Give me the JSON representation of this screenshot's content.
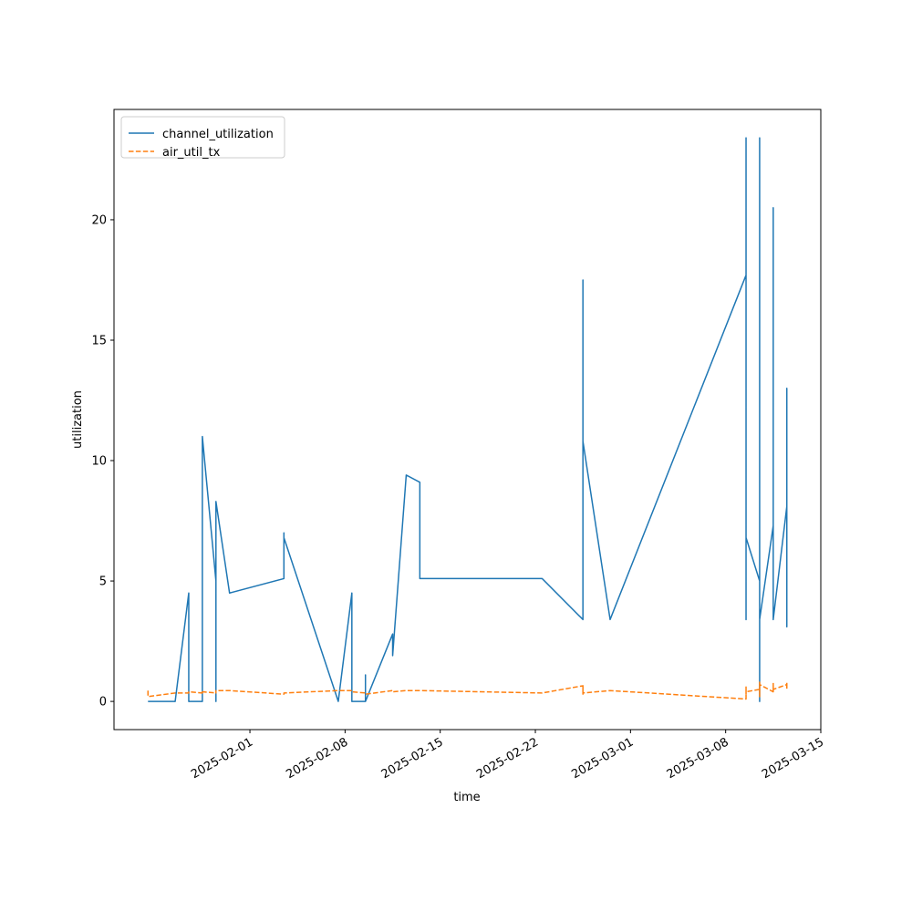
{
  "chart_data": {
    "type": "line",
    "xlabel": "time",
    "ylabel": "utilization",
    "x": [
      "2025-01-24",
      "2025-01-24",
      "2025-01-26",
      "2025-01-27",
      "2025-01-27",
      "2025-01-28",
      "2025-01-28",
      "2025-01-28",
      "2025-01-28",
      "2025-01-29",
      "2025-01-29",
      "2025-01-29",
      "2025-01-29",
      "2025-01-29",
      "2025-01-30",
      "2025-02-03",
      "2025-02-03",
      "2025-02-03",
      "2025-02-03",
      "2025-02-07",
      "2025-02-08",
      "2025-02-08",
      "2025-02-09",
      "2025-02-09",
      "2025-02-09",
      "2025-02-11",
      "2025-02-11",
      "2025-02-12",
      "2025-02-13",
      "2025-02-13",
      "2025-02-22",
      "2025-02-25",
      "2025-02-25",
      "2025-02-25",
      "2025-02-25",
      "2025-02-25",
      "2025-02-25",
      "2025-02-25",
      "2025-02-25",
      "2025-02-25",
      "2025-02-27",
      "2025-03-09",
      "2025-03-09",
      "2025-03-09",
      "2025-03-09",
      "2025-03-09",
      "2025-03-09",
      "2025-03-09",
      "2025-03-09",
      "2025-03-09",
      "2025-03-10",
      "2025-03-10",
      "2025-03-10",
      "2025-03-10",
      "2025-03-10",
      "2025-03-10",
      "2025-03-10",
      "2025-03-10",
      "2025-03-10",
      "2025-03-11",
      "2025-03-11",
      "2025-03-11",
      "2025-03-11",
      "2025-03-11",
      "2025-03-11",
      "2025-03-11",
      "2025-03-11",
      "2025-03-11",
      "2025-03-12",
      "2025-03-12",
      "2025-03-12",
      "2025-03-12",
      "2025-03-12",
      "2025-03-12"
    ],
    "series": [
      {
        "name": "channel_utilization",
        "color": "#1f77b4",
        "dash": false,
        "values": [
          0,
          0,
          0,
          4.5,
          0,
          0,
          7.3,
          5.3,
          11.0,
          5.0,
          0,
          1.4,
          0,
          8.3,
          4.5,
          5.1,
          7.0,
          5.1,
          6.8,
          0,
          4.5,
          0,
          0,
          1.1,
          0,
          2.8,
          1.9,
          9.4,
          9.1,
          5.1,
          5.1,
          3.4,
          6.1,
          4.4,
          17.5,
          9.5,
          14.2,
          10.5,
          5.2,
          10.8,
          3.4,
          17.7,
          23.4,
          9.4,
          12.2,
          5.5,
          3.4,
          7.0,
          4.4,
          6.8,
          5.0,
          8.8,
          3.4,
          23.4,
          0,
          13.6,
          3.4,
          9.7,
          3.4,
          7.3,
          3.4,
          20.5,
          3.4,
          10.9,
          3.4,
          7.9,
          15.3,
          3.4,
          8.1,
          5.2,
          10.3,
          3.1,
          13.0,
          6.8
        ]
      },
      {
        "name": "air_util_tx",
        "color": "#ff7f0e",
        "dash": true,
        "values": [
          0.45,
          0.2,
          0.35,
          0.35,
          0.4,
          0.35,
          0.4,
          0.35,
          0.4,
          0.35,
          0.4,
          0.4,
          0.35,
          0.45,
          0.45,
          0.3,
          0.3,
          0.35,
          0.35,
          0.45,
          0.45,
          0.4,
          0.35,
          0.35,
          0.3,
          0.45,
          0.4,
          0.45,
          0.45,
          0.45,
          0.35,
          0.65,
          0.5,
          0.6,
          0.35,
          0.45,
          0.3,
          0.5,
          0.3,
          0.35,
          0.45,
          0.1,
          0.55,
          0.3,
          0.6,
          0.4,
          0.5,
          0.3,
          0.6,
          0.4,
          0.5,
          0.3,
          0.7,
          0.2,
          0.8,
          0.4,
          0.6,
          0.5,
          0.7,
          0.4,
          0.8,
          0.5,
          0.7,
          0.4,
          0.8,
          0.5,
          0.7,
          0.5,
          0.7,
          0.5,
          0.8,
          0.6,
          0.7,
          0.6
        ]
      }
    ],
    "xlim": [
      "2025-01-22",
      "2025-03-15"
    ],
    "xticks": [
      "2025-02-01",
      "2025-02-08",
      "2025-02-15",
      "2025-02-22",
      "2025-03-01",
      "2025-03-08",
      "2025-03-15"
    ],
    "ylim": [
      -1.17,
      24.58
    ],
    "yticks": [
      0,
      5,
      10,
      15,
      20
    ],
    "legend": "upper left"
  }
}
